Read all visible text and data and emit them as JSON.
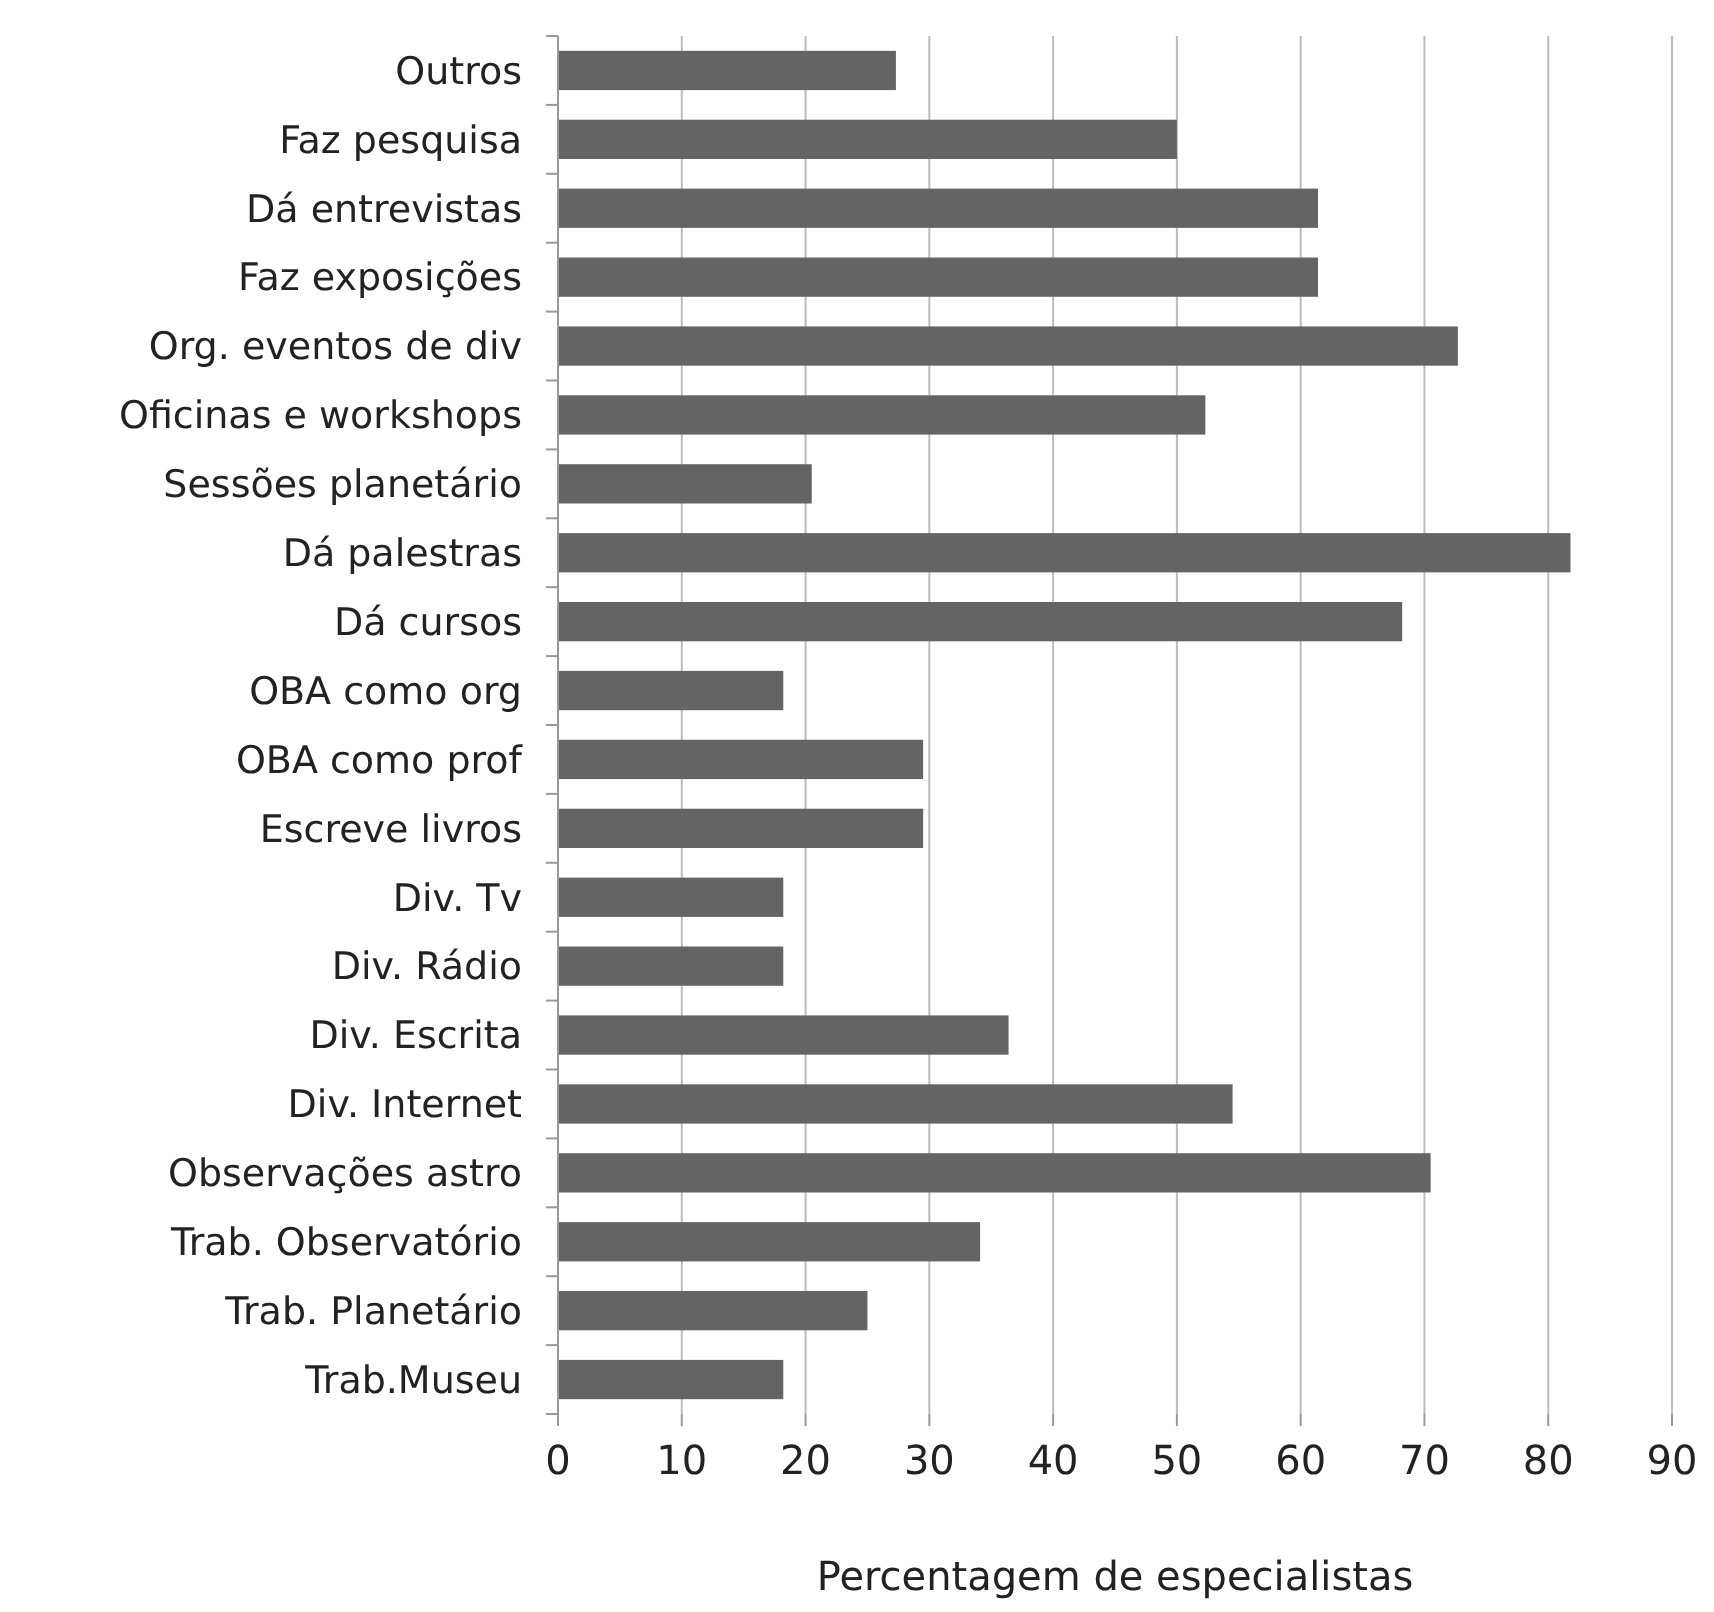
{
  "chart_data": {
    "type": "bar",
    "orientation": "horizontal",
    "xlabel": "Percentagem de especialistas",
    "categories": [
      "Outros",
      "Faz pesquisa",
      "Dá entrevistas",
      "Faz exposições",
      "Org. eventos de div",
      "Oficinas e workshops",
      "Sessões planetário",
      "Dá palestras",
      "Dá cursos",
      "OBA como org",
      "OBA como prof",
      "Escreve livros",
      "Div. Tv",
      "Div. Rádio",
      "Div. Escrita",
      "Div. Internet",
      "Observações astro",
      "Trab. Observatório",
      "Trab. Planetário",
      "Trab.Museu"
    ],
    "values": [
      27.3,
      50,
      61.4,
      61.4,
      72.7,
      52.3,
      20.5,
      81.8,
      68.2,
      18.2,
      29.5,
      29.5,
      18.2,
      18.2,
      36.4,
      54.5,
      70.5,
      34.1,
      25,
      18.2
    ],
    "color": "#646464",
    "xlim": [
      0,
      90
    ],
    "xticks": [
      0,
      10,
      20,
      30,
      40,
      50,
      60,
      70,
      80,
      90
    ],
    "grid": "x"
  }
}
